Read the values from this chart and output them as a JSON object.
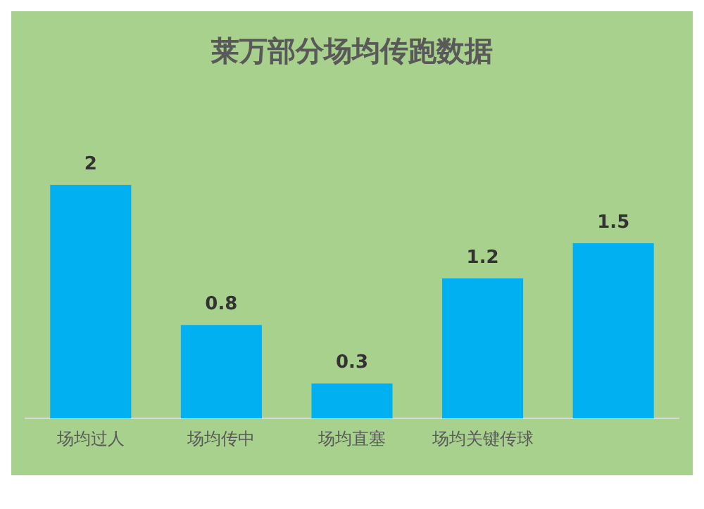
{
  "chart_data": {
    "type": "bar",
    "title": "莱万部分场均传跑数据",
    "categories": [
      "场均过人",
      "场均传中",
      "场均直塞",
      "场均关键传球",
      null
    ],
    "values": [
      2,
      0.8,
      0.3,
      1.2,
      1.5
    ],
    "color": "#00b0f0",
    "data_labels": true,
    "grid": false,
    "legend": false
  }
}
